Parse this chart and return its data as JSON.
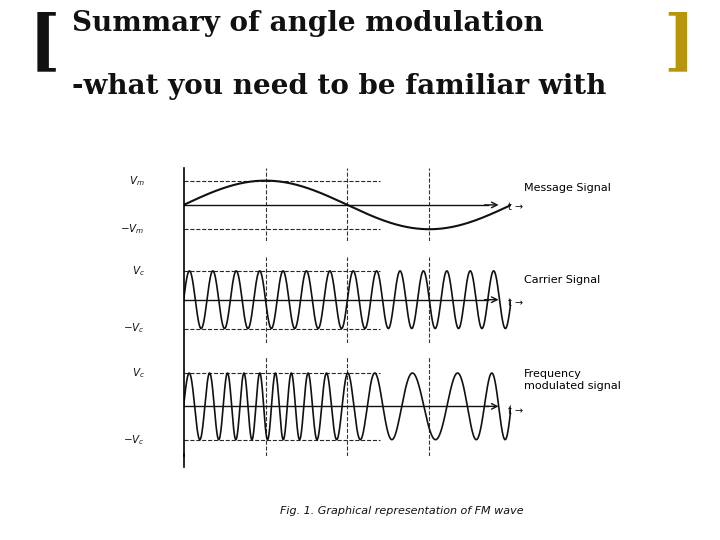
{
  "title_line1": "Summary of angle modulation",
  "title_line2": "-what you need to be familiar with",
  "title_fontsize": 20,
  "title_fontweight": "bold",
  "title_color": "#111111",
  "background_color": "#ffffff",
  "bracket_color": "#111111",
  "gold_color": "#b8960c",
  "fig_caption": "Fig. 1. Graphical representation of FM wave",
  "panel_bg": "#d8dce6",
  "signal_color": "#111111",
  "label_message": "Message Signal",
  "label_carrier": "Carrier Signal",
  "label_fm": "Frequency\nmodulated signal"
}
